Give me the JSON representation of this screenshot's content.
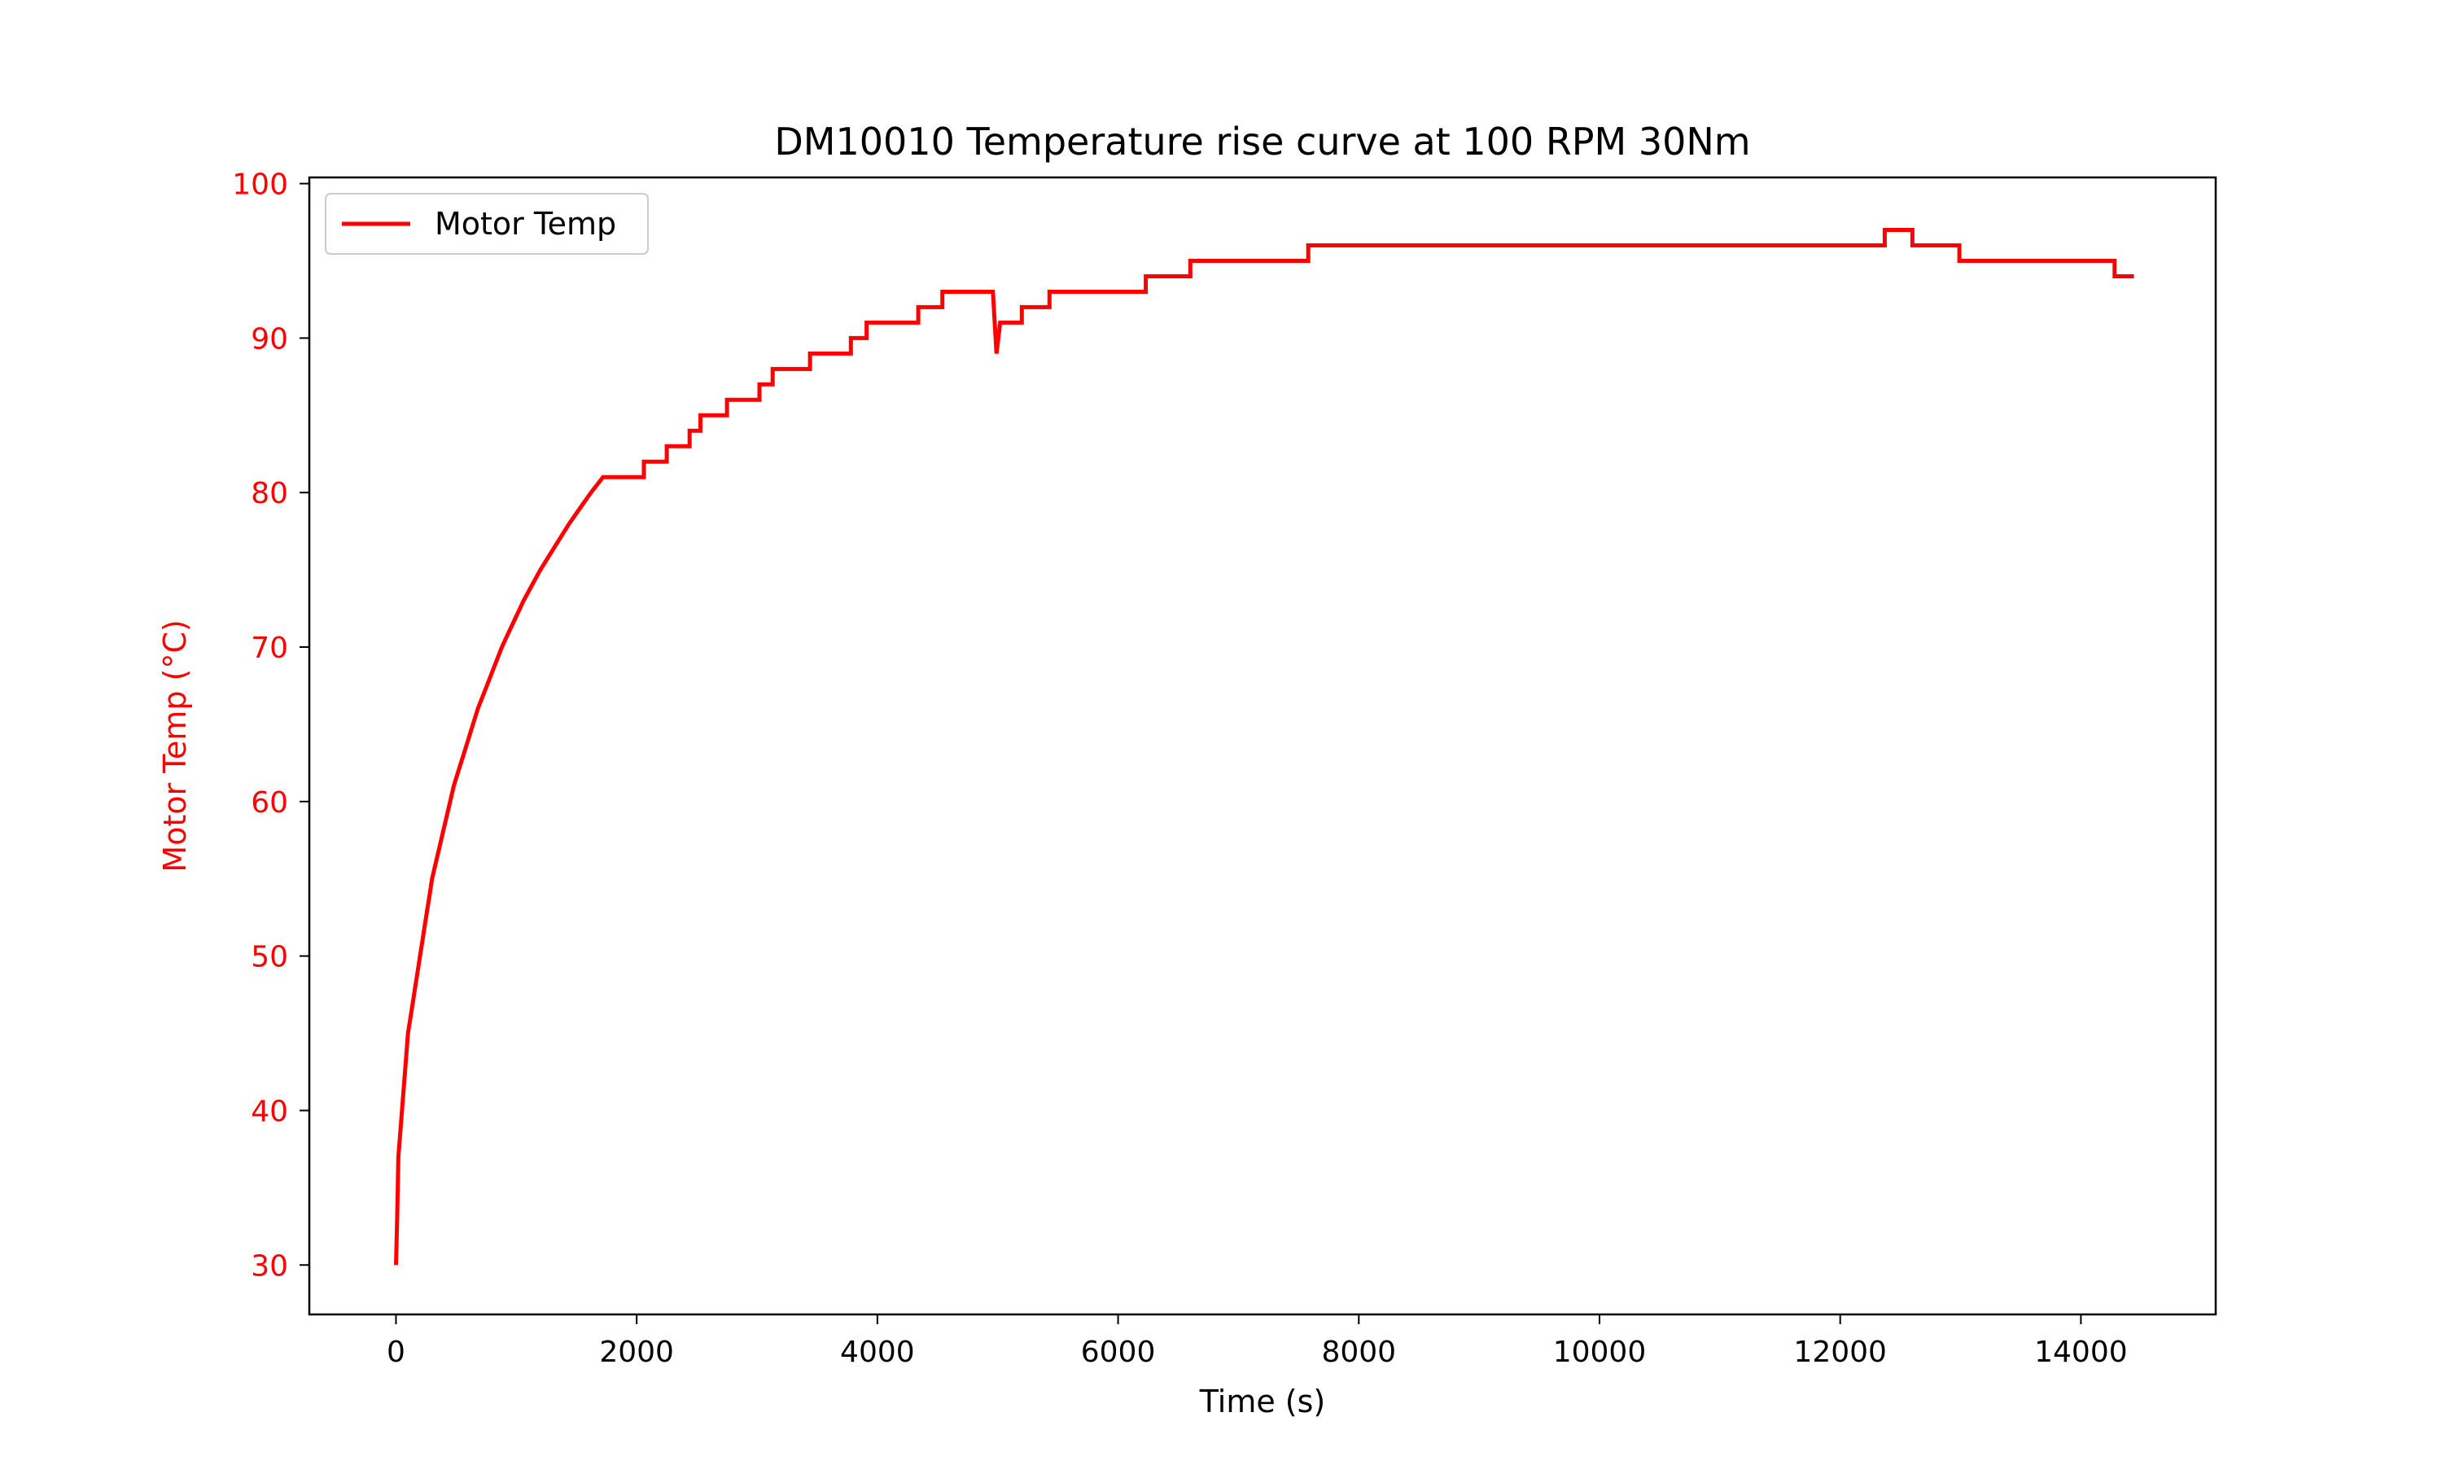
{
  "chart_data": {
    "type": "line",
    "title": "DM10010 Temperature rise curve at 100 RPM 30Nm",
    "xlabel": "Time (s)",
    "ylabel": "Motor Temp (°C)",
    "xlim": [
      -720,
      15120
    ],
    "ylim": [
      26.8,
      100.4
    ],
    "x_ticks": [
      0,
      2000,
      4000,
      6000,
      8000,
      10000,
      12000,
      14000
    ],
    "x_tick_labels": [
      "0",
      "2000",
      "4000",
      "6000",
      "8000",
      "10000",
      "12000",
      "14000"
    ],
    "y_ticks": [
      30,
      40,
      50,
      60,
      70,
      80,
      90,
      100
    ],
    "y_tick_labels": [
      "30",
      "40",
      "50",
      "60",
      "70",
      "80",
      "90",
      "100"
    ],
    "grid": false,
    "legend_position": "top-left",
    "colors": {
      "series": "#ff0000",
      "ylabel": "#ff0000",
      "yticks": "#ff0000",
      "axes": "#000000"
    },
    "series": [
      {
        "name": "Motor Temp",
        "color": "#ff0000",
        "x": [
          0,
          10,
          20,
          40,
          60,
          80,
          100,
          120,
          140,
          160,
          180,
          200,
          220,
          240,
          260,
          280,
          300,
          330,
          360,
          390,
          420,
          450,
          480,
          520,
          560,
          600,
          640,
          680,
          730,
          780,
          830,
          880,
          940,
          1000,
          1060,
          1130,
          1200,
          1280,
          1360,
          1440,
          1530,
          1620,
          1720,
          1820,
          1900,
          2060,
          2060,
          2250,
          2250,
          2440,
          2440,
          2530,
          2530,
          2750,
          2750,
          3020,
          3020,
          3130,
          3130,
          3440,
          3440,
          3780,
          3780,
          3910,
          3910,
          4340,
          4340,
          4540,
          4540,
          4960,
          4990,
          5020,
          5020,
          5200,
          5200,
          5430,
          5430,
          6230,
          6230,
          6600,
          6600,
          7580,
          7580,
          12370,
          12370,
          12600,
          12600,
          12990,
          12990,
          14280,
          14280,
          14440
        ],
        "y": [
          30,
          33,
          37,
          39,
          41,
          43,
          45,
          46,
          47,
          48,
          49,
          50,
          51,
          52,
          53,
          54,
          55,
          56,
          57,
          58,
          59,
          60,
          61,
          62,
          63,
          64,
          65,
          66,
          67,
          68,
          69,
          70,
          71,
          72,
          73,
          74,
          75,
          76,
          77,
          78,
          79,
          80,
          81,
          81,
          81,
          81,
          82,
          82,
          83,
          83,
          84,
          84,
          85,
          85,
          86,
          86,
          87,
          87,
          88,
          88,
          89,
          89,
          90,
          90,
          91,
          91,
          92,
          92,
          93,
          93,
          89,
          91,
          91,
          91,
          92,
          92,
          93,
          93,
          94,
          94,
          95,
          95,
          96,
          96,
          97,
          97,
          96,
          96,
          95,
          95,
          94,
          94
        ]
      }
    ]
  }
}
